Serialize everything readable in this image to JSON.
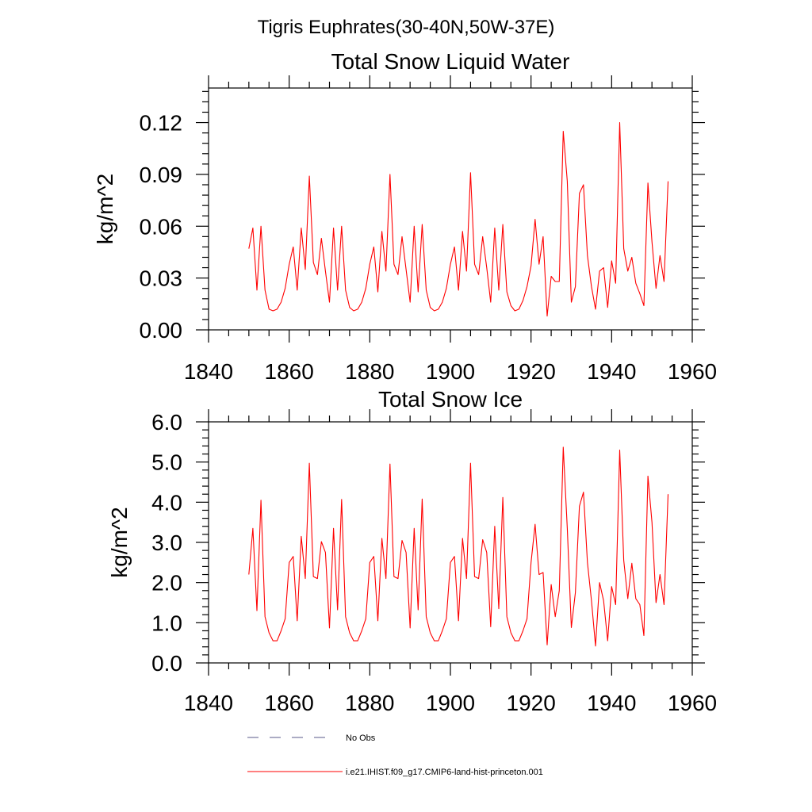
{
  "figure": {
    "suptitle": "Tigris Euphrates(30-40N,50W-37E)"
  },
  "legend": {
    "items": [
      {
        "label": "No Obs",
        "color": "#5a5a8a",
        "style": "dashed"
      },
      {
        "label": "i.e21.IHIST.f09_g17.CMIP6-land-hist-princeton.001",
        "color": "#ff0000",
        "style": "solid"
      }
    ]
  },
  "colors": {
    "series": "#ff0000",
    "no_obs": "#5a5a8a"
  },
  "chart_data": [
    {
      "type": "line",
      "title": "Total Snow Liquid Water",
      "xlabel": "",
      "ylabel": "kg/m^2",
      "xlim": [
        1840,
        1960
      ],
      "ylim": [
        0,
        0.14
      ],
      "xticks": [
        1840,
        1860,
        1880,
        1900,
        1920,
        1940,
        1960
      ],
      "xtick_labels": [
        "1840",
        "1860",
        "1880",
        "1900",
        "1920",
        "1940",
        "1960"
      ],
      "yticks": [
        0,
        0.03,
        0.06,
        0.09,
        0.12
      ],
      "ytick_labels": [
        "0.00",
        "0.03",
        "0.06",
        "0.09",
        "0.12"
      ],
      "grid": false,
      "series": [
        {
          "name": "i.e21.IHIST.f09_g17.CMIP6-land-hist-princeton.001",
          "x": [
            1850,
            1851,
            1852,
            1853,
            1854,
            1855,
            1856,
            1857,
            1858,
            1859,
            1860,
            1861,
            1862,
            1863,
            1864,
            1865,
            1866,
            1867,
            1868,
            1869,
            1870,
            1871,
            1872,
            1873,
            1874,
            1875,
            1876,
            1877,
            1878,
            1879,
            1880,
            1881,
            1882,
            1883,
            1884,
            1885,
            1886,
            1887,
            1888,
            1889,
            1890,
            1891,
            1892,
            1893,
            1894,
            1895,
            1896,
            1897,
            1898,
            1899,
            1900,
            1901,
            1902,
            1903,
            1904,
            1905,
            1906,
            1907,
            1908,
            1909,
            1910,
            1911,
            1912,
            1913,
            1914,
            1915,
            1916,
            1917,
            1918,
            1919,
            1920,
            1921,
            1922,
            1923,
            1924,
            1925,
            1926,
            1927,
            1928,
            1929,
            1930,
            1931,
            1932,
            1933,
            1934,
            1935,
            1936,
            1937,
            1938,
            1939,
            1940,
            1941,
            1942,
            1943,
            1944,
            1945,
            1946,
            1947,
            1948,
            1949,
            1950,
            1951,
            1952,
            1953,
            1954
          ],
          "y": [
            0.047,
            0.059,
            0.023,
            0.06,
            0.023,
            0.012,
            0.011,
            0.012,
            0.016,
            0.024,
            0.038,
            0.048,
            0.023,
            0.059,
            0.035,
            0.089,
            0.039,
            0.032,
            0.053,
            0.034,
            0.016,
            0.059,
            0.023,
            0.06,
            0.023,
            0.013,
            0.011,
            0.012,
            0.016,
            0.024,
            0.038,
            0.048,
            0.022,
            0.057,
            0.034,
            0.09,
            0.038,
            0.032,
            0.054,
            0.035,
            0.016,
            0.06,
            0.022,
            0.061,
            0.023,
            0.013,
            0.011,
            0.012,
            0.016,
            0.024,
            0.038,
            0.048,
            0.023,
            0.057,
            0.034,
            0.091,
            0.038,
            0.032,
            0.054,
            0.036,
            0.016,
            0.059,
            0.023,
            0.061,
            0.022,
            0.014,
            0.011,
            0.012,
            0.017,
            0.025,
            0.037,
            0.064,
            0.038,
            0.054,
            0.008,
            0.031,
            0.028,
            0.028,
            0.115,
            0.086,
            0.016,
            0.025,
            0.079,
            0.084,
            0.043,
            0.025,
            0.012,
            0.034,
            0.036,
            0.013,
            0.04,
            0.027,
            0.12,
            0.047,
            0.034,
            0.042,
            0.027,
            0.021,
            0.014,
            0.085,
            0.051,
            0.024,
            0.043,
            0.028,
            0.086
          ]
        }
      ]
    },
    {
      "type": "line",
      "title": "Total Snow Ice",
      "xlabel": "",
      "ylabel": "kg/m^2",
      "xlim": [
        1840,
        1960
      ],
      "ylim": [
        0,
        6
      ],
      "xticks": [
        1840,
        1860,
        1880,
        1900,
        1920,
        1940,
        1960
      ],
      "xtick_labels": [
        "1840",
        "1860",
        "1880",
        "1900",
        "1920",
        "1940",
        "1960"
      ],
      "yticks": [
        0,
        1,
        2,
        3,
        4,
        5,
        6
      ],
      "ytick_labels": [
        "0.0",
        "1.0",
        "2.0",
        "3.0",
        "4.0",
        "5.0",
        "6.0"
      ],
      "grid": false,
      "series": [
        {
          "name": "i.e21.IHIST.f09_g17.CMIP6-land-hist-princeton.001",
          "x": [
            1850,
            1851,
            1852,
            1853,
            1854,
            1855,
            1856,
            1857,
            1858,
            1859,
            1860,
            1861,
            1862,
            1863,
            1864,
            1865,
            1866,
            1867,
            1868,
            1869,
            1870,
            1871,
            1872,
            1873,
            1874,
            1875,
            1876,
            1877,
            1878,
            1879,
            1880,
            1881,
            1882,
            1883,
            1884,
            1885,
            1886,
            1887,
            1888,
            1889,
            1890,
            1891,
            1892,
            1893,
            1894,
            1895,
            1896,
            1897,
            1898,
            1899,
            1900,
            1901,
            1902,
            1903,
            1904,
            1905,
            1906,
            1907,
            1908,
            1909,
            1910,
            1911,
            1912,
            1913,
            1914,
            1915,
            1916,
            1917,
            1918,
            1919,
            1920,
            1921,
            1922,
            1923,
            1924,
            1925,
            1926,
            1927,
            1928,
            1929,
            1930,
            1931,
            1932,
            1933,
            1934,
            1935,
            1936,
            1937,
            1938,
            1939,
            1940,
            1941,
            1942,
            1943,
            1944,
            1945,
            1946,
            1947,
            1948,
            1949,
            1950,
            1951,
            1952,
            1953,
            1954
          ],
          "y": [
            2.2,
            3.35,
            1.3,
            4.05,
            1.15,
            0.75,
            0.55,
            0.55,
            0.8,
            1.1,
            2.5,
            2.65,
            1.05,
            3.15,
            2.1,
            4.97,
            2.15,
            2.1,
            3.02,
            2.75,
            0.87,
            3.35,
            1.32,
            4.07,
            1.15,
            0.75,
            0.55,
            0.55,
            0.8,
            1.1,
            2.5,
            2.65,
            1.05,
            3.1,
            2.1,
            4.95,
            2.15,
            2.1,
            3.05,
            2.75,
            0.87,
            3.35,
            1.32,
            4.08,
            1.15,
            0.75,
            0.55,
            0.55,
            0.8,
            1.1,
            2.5,
            2.65,
            1.05,
            3.1,
            2.1,
            4.97,
            2.15,
            2.1,
            3.07,
            2.75,
            0.9,
            3.4,
            1.35,
            4.12,
            1.15,
            0.75,
            0.55,
            0.55,
            0.8,
            1.1,
            2.5,
            3.45,
            2.2,
            2.25,
            0.45,
            1.95,
            1.15,
            1.8,
            5.37,
            3.35,
            0.88,
            1.75,
            3.9,
            4.25,
            2.5,
            1.55,
            0.42,
            2.0,
            1.55,
            0.55,
            1.9,
            1.45,
            5.3,
            2.55,
            1.6,
            2.48,
            1.6,
            1.45,
            0.68,
            4.65,
            3.5,
            1.5,
            2.2,
            1.45,
            4.2
          ]
        }
      ]
    }
  ]
}
